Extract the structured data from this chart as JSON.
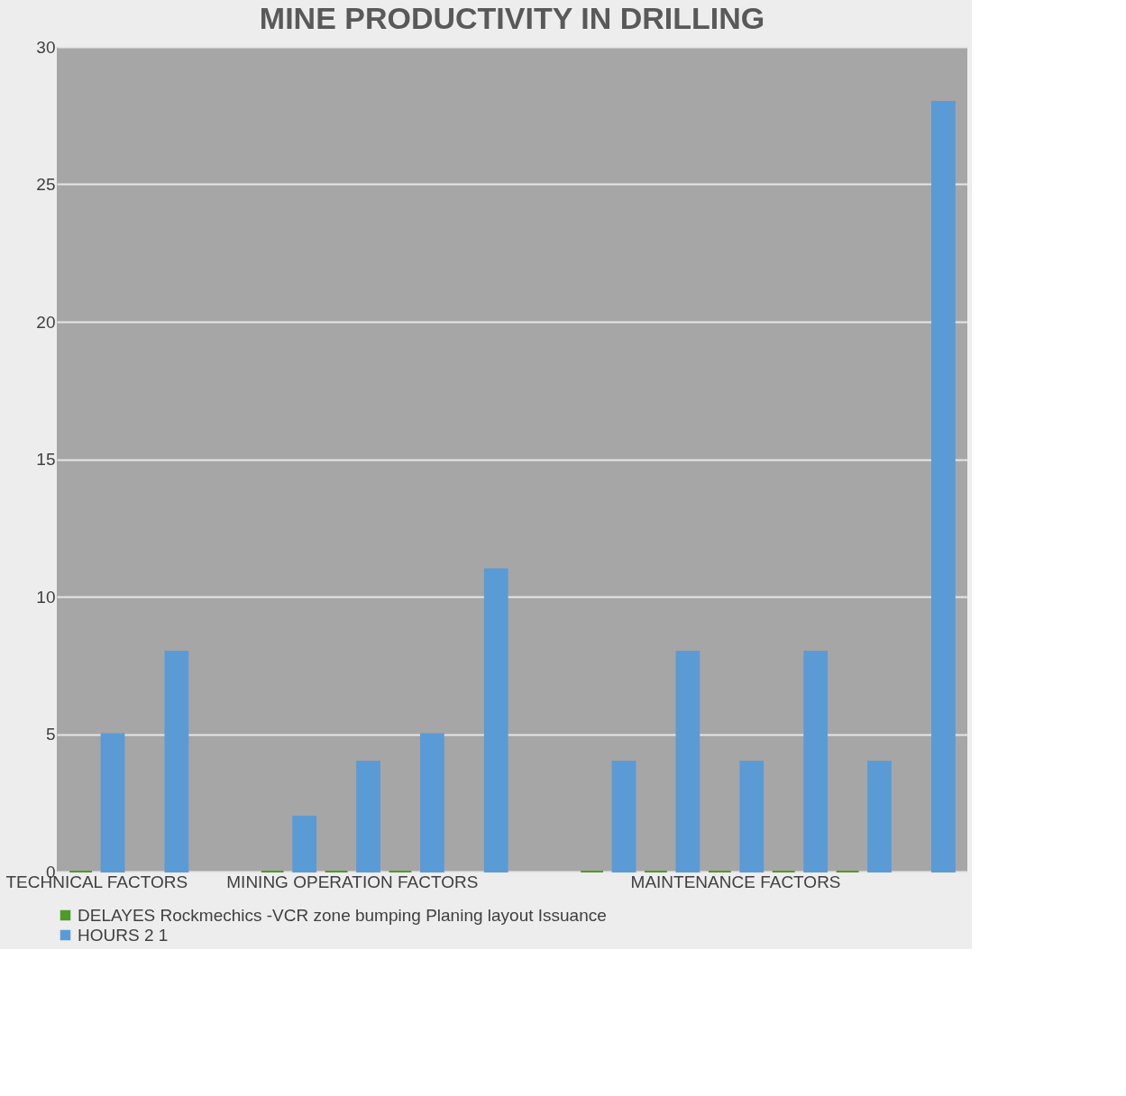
{
  "chart_data": {
    "type": "bar",
    "title": "MINE PRODUCTIVITY IN DRILLING",
    "categories": [
      "TECHNICAL FACTORS",
      null,
      null,
      null,
      "MINING OPERATION FACTORS",
      null,
      null,
      null,
      null,
      null,
      "MAINTENANCE FACTORS",
      null,
      null,
      null
    ],
    "series": [
      {
        "name": "DELAYES Rockmechics -VCR zone bumping Planing layout Issuance",
        "color": "#4e9a2a",
        "values": [
          0,
          null,
          null,
          0,
          0,
          0,
          null,
          null,
          0,
          0,
          0,
          0,
          0,
          null
        ]
      },
      {
        "name": "HOURS 2 1",
        "color": "#5b9bd5",
        "values": [
          5,
          8,
          null,
          2,
          4,
          5,
          11,
          null,
          4,
          8,
          4,
          8,
          4,
          28
        ]
      }
    ],
    "ylim": [
      0,
      30
    ],
    "yticks": [
      0,
      5,
      10,
      15,
      20,
      25,
      30
    ],
    "grid": "y",
    "legend": "bottom"
  }
}
